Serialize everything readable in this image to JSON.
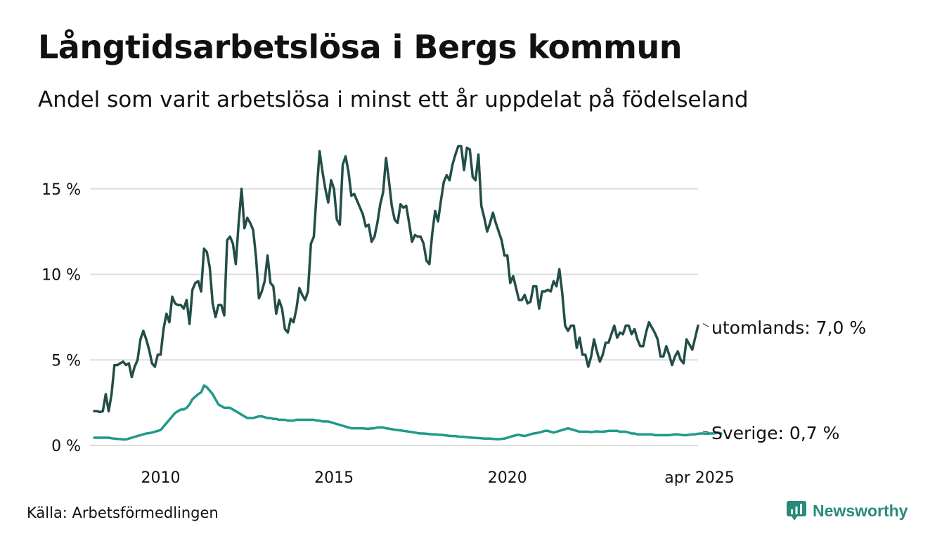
{
  "title": "Långtidsarbetslösa i Bergs kommun",
  "subtitle": "Andel som varit arbetslösa i minst ett år uppdelat på födelseland",
  "source": "Källa: Arbetsförmedlingen",
  "brand": {
    "name": "Newsworthy",
    "icon": "newsworthy-logo-icon",
    "color": "#2a8a7a"
  },
  "colors": {
    "utomlands": "#234e48",
    "sverige": "#1f9a8a",
    "grid": "#dddddd",
    "text": "#111111"
  },
  "chart_data": {
    "type": "line",
    "title": "Långtidsarbetslösa i Bergs kommun",
    "subtitle": "Andel som varit arbetslösa i minst ett år uppdelat på födelseland",
    "x_start": "2008-02",
    "x_end": "2025-04",
    "x_ticks": [
      "2010",
      "2015",
      "2020",
      "apr 2025"
    ],
    "y_ticks": [
      "0 %",
      "5 %",
      "10 %",
      "15 %"
    ],
    "ylim": [
      0,
      17.5
    ],
    "grid": true,
    "series": [
      {
        "name": "utomlands",
        "end_label": "utomlands: 7,0 %",
        "values": [
          2.0,
          2.0,
          1.95,
          2.0,
          3.0,
          2.0,
          3.0,
          4.7,
          4.7,
          4.8,
          4.9,
          4.7,
          4.8,
          4.0,
          4.6,
          5.0,
          6.2,
          6.7,
          6.2,
          5.6,
          4.8,
          4.6,
          5.3,
          5.3,
          6.8,
          7.7,
          7.2,
          8.7,
          8.3,
          8.2,
          8.2,
          8.0,
          8.5,
          7.1,
          9.1,
          9.5,
          9.6,
          9.0,
          11.5,
          11.3,
          10.4,
          8.3,
          7.5,
          8.2,
          8.2,
          7.6,
          12.0,
          12.2,
          11.8,
          10.6,
          13.0,
          15.0,
          12.7,
          13.3,
          13.0,
          12.6,
          11.0,
          8.6,
          9.0,
          9.6,
          11.1,
          9.5,
          9.3,
          7.7,
          8.5,
          8.0,
          6.8,
          6.6,
          7.4,
          7.2,
          8.0,
          9.2,
          8.8,
          8.5,
          9.0,
          11.8,
          12.2,
          14.8,
          17.2,
          16.0,
          15.0,
          14.2,
          15.5,
          15.0,
          13.2,
          12.9,
          16.4,
          16.9,
          16.0,
          14.6,
          14.7,
          14.3,
          13.9,
          13.5,
          12.8,
          12.9,
          11.9,
          12.2,
          13.0,
          14.1,
          14.8,
          16.8,
          15.5,
          14.0,
          13.2,
          13.0,
          14.1,
          13.9,
          14.0,
          13.0,
          11.9,
          12.3,
          12.2,
          12.2,
          11.8,
          10.8,
          10.6,
          12.4,
          13.7,
          13.1,
          14.3,
          15.4,
          15.8,
          15.5,
          16.4,
          17.0,
          17.5,
          17.5,
          16.1,
          17.4,
          17.3,
          15.7,
          15.5,
          17.0,
          14.0,
          13.3,
          12.5,
          13.0,
          13.6,
          13.0,
          12.5,
          12.0,
          11.1,
          11.1,
          9.5,
          9.9,
          9.2,
          8.5,
          8.5,
          8.8,
          8.3,
          8.4,
          9.3,
          9.3,
          8.0,
          9.0,
          9.0,
          9.1,
          9.0,
          9.6,
          9.3,
          10.3,
          8.9,
          7.0,
          6.7,
          7.0,
          7.0,
          5.7,
          6.3,
          5.3,
          5.3,
          4.6,
          5.2,
          6.2,
          5.5,
          4.9,
          5.3,
          6.0,
          6.0,
          6.5,
          7.0,
          6.3,
          6.6,
          6.5,
          7.0,
          7.0,
          6.5,
          6.8,
          6.2,
          5.8,
          5.8,
          6.6,
          7.2,
          6.9,
          6.6,
          6.2,
          5.2,
          5.2,
          5.8,
          5.3,
          4.7,
          5.2,
          5.5,
          5.0,
          4.8,
          6.2,
          5.9,
          5.6,
          6.3,
          7.0
        ]
      },
      {
        "name": "Sverige",
        "end_label": "Sverige: 0,7 %",
        "values": [
          0.45,
          0.45,
          0.45,
          0.45,
          0.45,
          0.45,
          0.42,
          0.4,
          0.38,
          0.37,
          0.35,
          0.35,
          0.4,
          0.45,
          0.5,
          0.55,
          0.6,
          0.65,
          0.7,
          0.72,
          0.75,
          0.8,
          0.85,
          0.9,
          1.1,
          1.3,
          1.5,
          1.7,
          1.9,
          2.0,
          2.1,
          2.1,
          2.2,
          2.4,
          2.7,
          2.85,
          3.0,
          3.1,
          3.5,
          3.4,
          3.2,
          3.0,
          2.7,
          2.4,
          2.3,
          2.2,
          2.2,
          2.2,
          2.1,
          2.0,
          1.9,
          1.8,
          1.7,
          1.6,
          1.6,
          1.6,
          1.65,
          1.7,
          1.7,
          1.65,
          1.6,
          1.6,
          1.55,
          1.55,
          1.5,
          1.5,
          1.5,
          1.45,
          1.45,
          1.45,
          1.5,
          1.5,
          1.5,
          1.5,
          1.5,
          1.5,
          1.5,
          1.45,
          1.45,
          1.4,
          1.4,
          1.4,
          1.35,
          1.3,
          1.25,
          1.2,
          1.15,
          1.1,
          1.05,
          1.0,
          1.0,
          1.0,
          1.0,
          1.0,
          0.98,
          0.97,
          1.0,
          1.0,
          1.05,
          1.05,
          1.05,
          1.0,
          0.98,
          0.95,
          0.92,
          0.9,
          0.88,
          0.85,
          0.83,
          0.8,
          0.78,
          0.75,
          0.72,
          0.7,
          0.7,
          0.68,
          0.66,
          0.65,
          0.65,
          0.63,
          0.62,
          0.6,
          0.58,
          0.56,
          0.55,
          0.55,
          0.52,
          0.5,
          0.5,
          0.48,
          0.46,
          0.45,
          0.44,
          0.43,
          0.42,
          0.4,
          0.4,
          0.4,
          0.38,
          0.37,
          0.36,
          0.38,
          0.4,
          0.45,
          0.5,
          0.55,
          0.6,
          0.62,
          0.58,
          0.55,
          0.6,
          0.65,
          0.7,
          0.72,
          0.75,
          0.8,
          0.85,
          0.85,
          0.8,
          0.75,
          0.8,
          0.85,
          0.9,
          0.95,
          1.0,
          0.95,
          0.9,
          0.85,
          0.8,
          0.8,
          0.8,
          0.8,
          0.78,
          0.8,
          0.82,
          0.8,
          0.8,
          0.82,
          0.85,
          0.85,
          0.85,
          0.85,
          0.8,
          0.8,
          0.8,
          0.75,
          0.7,
          0.7,
          0.65,
          0.65,
          0.65,
          0.65,
          0.65,
          0.65,
          0.6,
          0.6,
          0.6,
          0.6,
          0.6,
          0.6,
          0.62,
          0.65,
          0.65,
          0.62,
          0.6,
          0.6,
          0.62,
          0.65,
          0.65,
          0.68,
          0.7,
          0.7,
          0.68,
          0.7,
          0.7,
          0.72,
          0.75,
          0.7
        ]
      }
    ]
  }
}
